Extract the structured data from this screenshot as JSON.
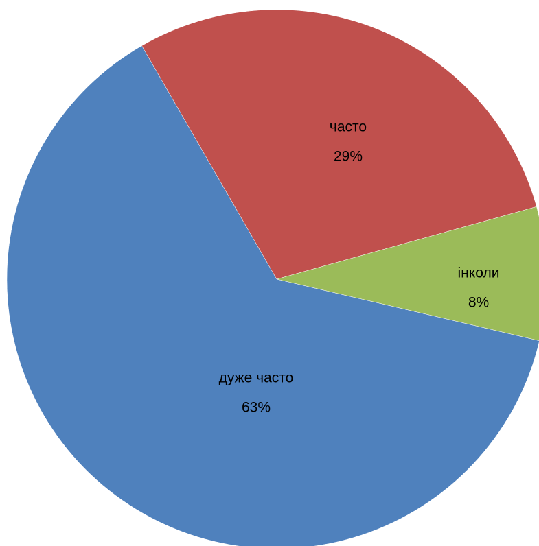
{
  "chart_data": {
    "type": "pie",
    "categories": [
      "дуже часто",
      "часто",
      "інколи"
    ],
    "values": [
      63,
      29,
      8
    ],
    "value_labels": [
      "63%",
      "29%",
      "8%"
    ],
    "colors": [
      "#4f81bd",
      "#c0504d",
      "#9bbb59"
    ]
  }
}
